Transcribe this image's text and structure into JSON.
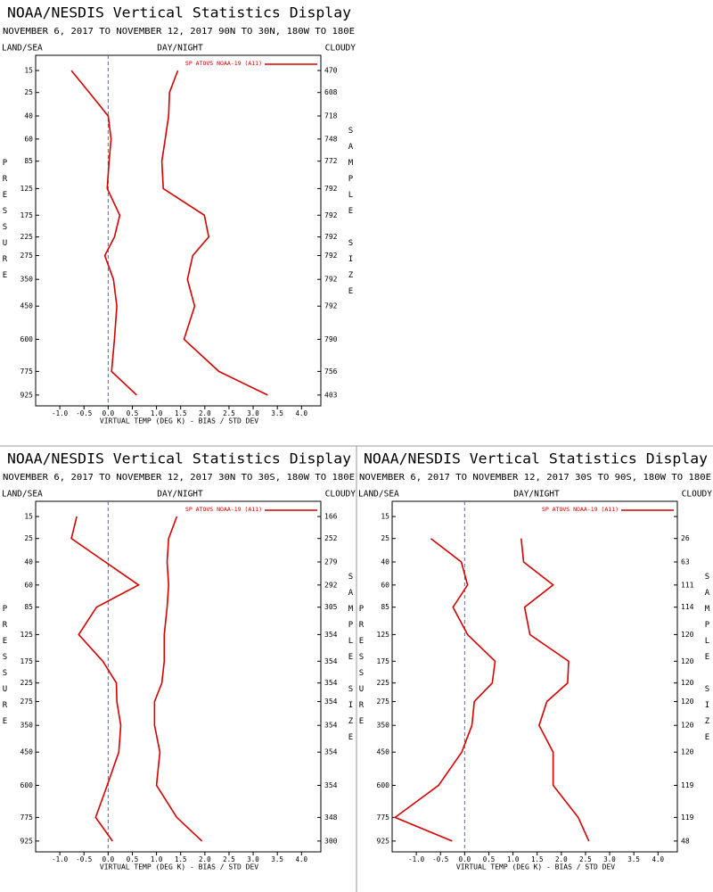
{
  "chart_data": [
    {
      "type": "line",
      "title": "NOAA/NESDIS Vertical Statistics Display",
      "subtitle": "NOVEMBER 6, 2017 TO NOVEMBER 12, 2017 90N TO 30N, 180W TO 180E",
      "left_header": "LAND/SEA",
      "center_header": "DAY/NIGHT",
      "right_header": "CLOUDY",
      "y_label": "PRESSURE",
      "y2_label": "SAMPLE SIZE",
      "x_label": "VIRTUAL TEMP (DEG K) - BIAS / STD DEV",
      "y": [
        15,
        25,
        40,
        60,
        85,
        125,
        175,
        225,
        275,
        350,
        450,
        600,
        775,
        925
      ],
      "sample_size": [
        470,
        608,
        718,
        748,
        772,
        792,
        792,
        792,
        792,
        792,
        792,
        790,
        756,
        403
      ],
      "ylim": [
        1000,
        10
      ],
      "xlim": [
        -1.5,
        4.4
      ],
      "xticks": [
        {
          "value": -1,
          "label": "-1.0"
        },
        {
          "value": -0.5,
          "label": "-0.5"
        },
        {
          "value": 0,
          "label": "0.0"
        },
        {
          "value": 0.5,
          "label": "0.5"
        },
        {
          "value": 1,
          "label": "1.0"
        },
        {
          "value": 1.5,
          "label": "1.5"
        },
        {
          "value": 2,
          "label": "2.0"
        },
        {
          "value": 2.5,
          "label": "2.5"
        },
        {
          "value": 3,
          "label": "3.0"
        },
        {
          "value": 3.5,
          "label": "3.5"
        },
        {
          "value": 4,
          "label": "4.0"
        }
      ],
      "series": [
        {
          "name": "SP ATOVS NOAA-19 (A11)",
          "color": "#d40000",
          "values": [
            -0.76,
            -0.39,
            0.0,
            0.06,
            0.02,
            -0.02,
            0.24,
            0.13,
            -0.07,
            0.11,
            0.18,
            0.13,
            0.07,
            0.59
          ],
          "std_dev": [
            1.44,
            1.27,
            1.25,
            1.18,
            1.11,
            1.14,
            1.99,
            2.08,
            1.75,
            1.64,
            1.79,
            1.57,
            2.29,
            3.3
          ]
        }
      ]
    },
    {
      "type": "line",
      "title": "NOAA/NESDIS Vertical Statistics Display",
      "subtitle": "NOVEMBER 6, 2017 TO NOVEMBER 12, 2017 30N TO 30S, 180W TO 180E",
      "left_header": "LAND/SEA",
      "center_header": "DAY/NIGHT",
      "right_header": "CLOUDY",
      "y_label": "PRESSURE",
      "y2_label": "SAMPLE SIZE",
      "x_label": "VIRTUAL TEMP (DEG K) - BIAS / STD DEV",
      "y": [
        15,
        25,
        40,
        60,
        85,
        125,
        175,
        225,
        275,
        350,
        450,
        600,
        775,
        925
      ],
      "sample_size": [
        166,
        252,
        279,
        292,
        305,
        354,
        354,
        354,
        354,
        354,
        354,
        354,
        348,
        300
      ],
      "ylim": [
        1000,
        10
      ],
      "xlim": [
        -1.5,
        4.4
      ],
      "xticks": [
        {
          "value": -1,
          "label": "-1.0"
        },
        {
          "value": -0.5,
          "label": "-0.5"
        },
        {
          "value": 0,
          "label": "0.0"
        },
        {
          "value": 0.5,
          "label": "0.5"
        },
        {
          "value": 1,
          "label": "1.0"
        },
        {
          "value": 1.5,
          "label": "1.5"
        },
        {
          "value": 2,
          "label": "2.0"
        },
        {
          "value": 2.5,
          "label": "2.5"
        },
        {
          "value": 3,
          "label": "3.0"
        },
        {
          "value": 3.5,
          "label": "3.5"
        },
        {
          "value": 4,
          "label": "4.0"
        }
      ],
      "series": [
        {
          "name": "SP ATOVS NOAA-19 (A11)",
          "color": "#d40000",
          "values": [
            -0.65,
            -0.76,
            -0.06,
            0.63,
            -0.24,
            -0.61,
            -0.11,
            0.17,
            0.18,
            0.26,
            0.22,
            -0.02,
            -0.26,
            0.09
          ],
          "std_dev": [
            1.42,
            1.25,
            1.22,
            1.25,
            1.22,
            1.16,
            1.16,
            1.11,
            0.96,
            0.96,
            1.07,
            1.0,
            1.42,
            1.94
          ]
        }
      ]
    },
    {
      "type": "line",
      "title": "NOAA/NESDIS Vertical Statistics Display",
      "subtitle": "NOVEMBER 6, 2017 TO NOVEMBER 12, 2017 30S TO 90S, 180W TO 180E",
      "left_header": "LAND/SEA",
      "center_header": "DAY/NIGHT",
      "right_header": "CLOUDY",
      "y_label": "PRESSURE",
      "y2_label": "SAMPLE SIZE",
      "x_label": "VIRTUAL TEMP (DEG K) - BIAS / STD DEV",
      "y": [
        15,
        25,
        40,
        60,
        85,
        125,
        175,
        225,
        275,
        350,
        450,
        600,
        775,
        925
      ],
      "sample_size": [
        null,
        26,
        63,
        111,
        114,
        120,
        120,
        120,
        120,
        120,
        120,
        119,
        119,
        48
      ],
      "ylim": [
        1000,
        10
      ],
      "xlim": [
        -1.5,
        4.4
      ],
      "xticks": [
        {
          "value": -1,
          "label": "-1.0"
        },
        {
          "value": -0.5,
          "label": "-0.5"
        },
        {
          "value": 0,
          "label": "0.0"
        },
        {
          "value": 0.5,
          "label": "0.5"
        },
        {
          "value": 1,
          "label": "1.0"
        },
        {
          "value": 1.5,
          "label": "1.5"
        },
        {
          "value": 2,
          "label": "2.0"
        },
        {
          "value": 2.5,
          "label": "2.5"
        },
        {
          "value": 3,
          "label": "3.0"
        },
        {
          "value": 3.5,
          "label": "3.5"
        },
        {
          "value": 4,
          "label": "4.0"
        }
      ],
      "series": [
        {
          "name": "SP ATOVS NOAA-19 (A11)",
          "color": "#d40000",
          "values": [
            null,
            -0.7,
            -0.07,
            0.06,
            -0.24,
            0.06,
            0.63,
            0.57,
            0.2,
            0.15,
            -0.06,
            -0.54,
            -1.44,
            -0.26
          ],
          "std_dev": [
            null,
            1.17,
            1.22,
            1.83,
            1.24,
            1.35,
            2.15,
            2.13,
            1.7,
            1.54,
            1.83,
            1.83,
            2.35,
            2.57
          ]
        }
      ]
    }
  ]
}
